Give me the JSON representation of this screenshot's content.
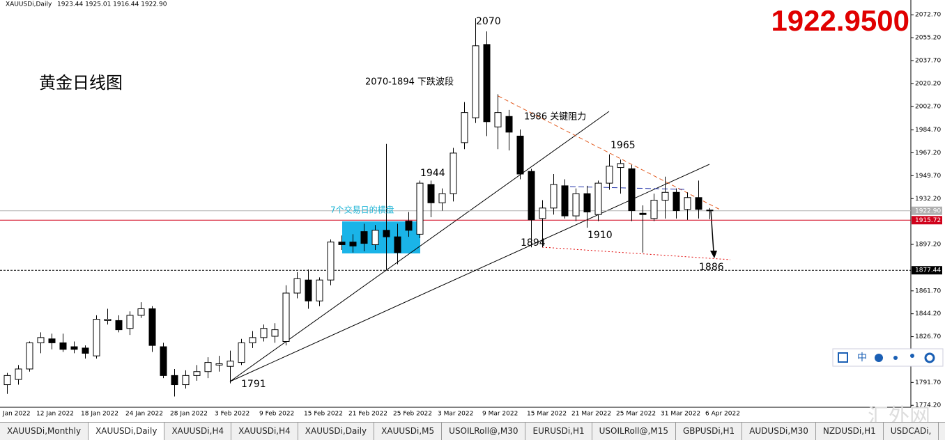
{
  "header": {
    "symbol": "XAUUSDi,Daily",
    "ohlc": "1923.44 1925.01 1916.44 1922.90"
  },
  "big_price": "1922.9500",
  "chart_data": {
    "type": "candlestick",
    "categories": [
      "Jan 2022",
      null,
      null,
      "12 Jan 2022",
      null,
      null,
      null,
      "18 Jan 2022",
      null,
      null,
      null,
      "24 Jan 2022",
      null,
      null,
      null,
      "28 Jan 2022",
      null,
      null,
      null,
      "3 Feb 2022",
      null,
      null,
      null,
      "9 Feb 2022",
      null,
      null,
      null,
      "15 Feb 2022",
      null,
      null,
      null,
      "21 Feb 2022",
      null,
      null,
      null,
      "25 Feb 2022",
      null,
      null,
      null,
      "3 Mar 2022",
      null,
      null,
      null,
      "9 Mar 2022",
      null,
      null,
      null,
      "15 Mar 2022",
      null,
      null,
      null,
      "21 Mar 2022",
      null,
      null,
      null,
      "25 Mar 2022",
      null,
      null,
      null,
      "31 Mar 2022",
      null,
      null,
      null,
      "6 Apr 2022"
    ],
    "open": [
      1790,
      1794,
      1802,
      1822,
      1825,
      1822,
      1819,
      1818,
      1812,
      1839,
      1839,
      1833,
      1843,
      1848,
      1819,
      1797,
      1790,
      1797,
      1800,
      1805,
      1804,
      1807,
      1822,
      1826,
      1827,
      1823,
      1860,
      1870,
      1854,
      1870,
      1899,
      1899,
      1907,
      1897,
      1908,
      1903,
      1915,
      1905,
      1943,
      1929,
      1936,
      1975,
      1994,
      2050,
      1987,
      1995,
      1980,
      1953,
      1917,
      1925,
      1942,
      1919,
      1936,
      1920,
      1944,
      1956,
      1955,
      1921,
      1917,
      1931,
      1937,
      1924,
      1933,
      1923.44
    ],
    "high": [
      1799,
      1805,
      1823,
      1830,
      1829,
      1829,
      1823,
      1820,
      1843,
      1848,
      1843,
      1846,
      1853,
      1850,
      1822,
      1802,
      1801,
      1805,
      1811,
      1812,
      1816,
      1825,
      1831,
      1836,
      1837,
      1866,
      1876,
      1878,
      1872,
      1901,
      1904,
      1905,
      1913,
      1912,
      1974,
      1913,
      1922,
      1946,
      1946,
      1940,
      1971,
      2006,
      2070,
      2060,
      2012,
      2000,
      1985,
      1955,
      1931,
      1951,
      1947,
      1940,
      1942,
      1946,
      1966,
      1962,
      1958,
      1927,
      1936,
      1949,
      1940,
      1937,
      1946,
      1925.01
    ],
    "low": [
      1783,
      1790,
      1800,
      1814,
      1817,
      1815,
      1814,
      1810,
      1810,
      1836,
      1830,
      1828,
      1841,
      1815,
      1795,
      1781,
      1787,
      1793,
      1795,
      1800,
      1791,
      1805,
      1818,
      1823,
      1822,
      1820,
      1856,
      1848,
      1850,
      1866,
      1893,
      1891,
      1892,
      1893,
      1878,
      1882,
      1903,
      1902,
      1918,
      1923,
      1930,
      1970,
      1990,
      1980,
      1970,
      1969,
      1947,
      1895,
      1895,
      1920,
      1917,
      1915,
      1910,
      1915,
      1939,
      1936,
      1915,
      1891,
      1915,
      1917,
      1917,
      1916,
      1917,
      1916.44
    ],
    "close": [
      1797,
      1802,
      1822,
      1826,
      1822,
      1817,
      1817,
      1814,
      1840,
      1840,
      1832,
      1843,
      1848,
      1820,
      1797,
      1790,
      1797,
      1800,
      1807,
      1806,
      1808,
      1822,
      1826,
      1833,
      1832,
      1860,
      1871,
      1854,
      1870,
      1899,
      1897,
      1896,
      1898,
      1908,
      1903,
      1891,
      1908,
      1944,
      1929,
      1936,
      1967,
      1998,
      2049,
      1991,
      1998,
      1983,
      1951,
      1916,
      1925,
      1943,
      1919,
      1936,
      1922,
      1944,
      1957,
      1959,
      1923,
      1920,
      1931,
      1937,
      1923,
      1933,
      1924,
      1922.9
    ],
    "ylim": [
      1769,
      2084
    ],
    "yticks": [
      {
        "value": 2072.7,
        "label": "2072.70"
      },
      {
        "value": 2055.2,
        "label": "2055.20"
      },
      {
        "value": 2037.7,
        "label": "2037.70"
      },
      {
        "value": 2020.2,
        "label": "2020.20"
      },
      {
        "value": 2002.7,
        "label": "2002.70"
      },
      {
        "value": 1984.7,
        "label": "1984.70"
      },
      {
        "value": 1967.2,
        "label": "1967.20"
      },
      {
        "value": 1949.7,
        "label": "1949.70"
      },
      {
        "value": 1932.2,
        "label": "1932.20"
      },
      {
        "value": 1897.2,
        "label": "1897.20"
      },
      {
        "value": 1861.7,
        "label": "1861.70"
      },
      {
        "value": 1844.2,
        "label": "1844.20"
      },
      {
        "value": 1826.7,
        "label": "1826.70"
      },
      {
        "value": 1791.7,
        "label": "1791.70"
      },
      {
        "value": 1774.2,
        "label": "1774.20"
      }
    ],
    "price_lines": [
      {
        "value": 1922.9,
        "label": "1922.90",
        "color": "#b0b0b0"
      },
      {
        "value": 1915.72,
        "label": "1915.72",
        "color": "#d0021b"
      },
      {
        "value": 1877.44,
        "label": "1877.44",
        "color": "#000000"
      }
    ],
    "annotations": [
      "黄金日线图",
      "2070",
      "2070-1894 下跌波段",
      "1986 关键阻力",
      "1965",
      "1944",
      "7个交易日的横盘",
      "1894",
      "1910",
      "1886",
      "1791"
    ]
  },
  "toolbar": {
    "lang": "中"
  },
  "tabs": [
    "XAUUSDi,Monthly",
    "XAUUSDi,Daily",
    "XAUUSDi,H4",
    "XAUUSDi,H4",
    "XAUUSDi,Daily",
    "XAUUSDi,M5",
    "USOILRoll@,M30",
    "EURUSDi,H1",
    "USOILRoll@,M15",
    "GBPUSDi,H1",
    "AUDUSDi,M30",
    "NZDUSDi,H1",
    "USDCADi,"
  ],
  "active_tab": 1,
  "watermark": "汇外网"
}
